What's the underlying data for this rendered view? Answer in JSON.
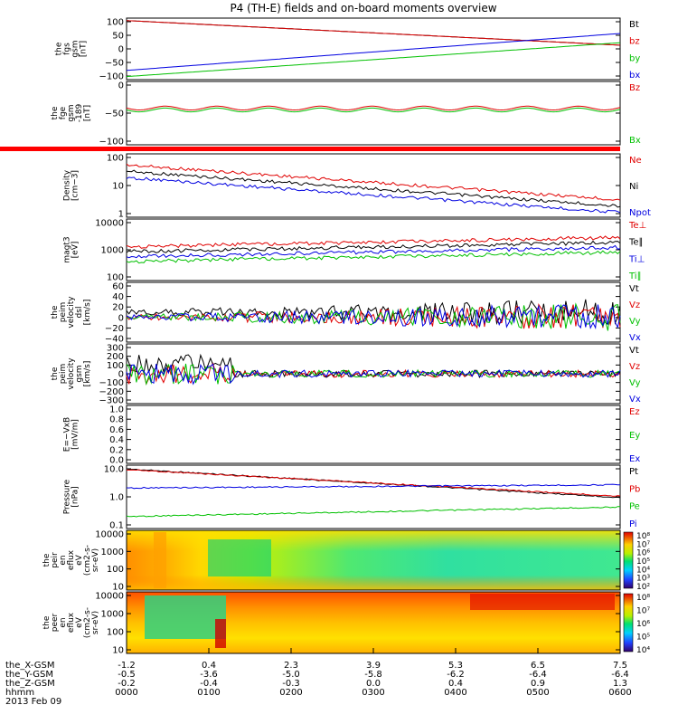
{
  "title": "P4 (TH-E) fields and on-board moments overview",
  "chart_data": {
    "type": "line",
    "x_ticks": {
      "rows": [
        {
          "label": "the_X-GSM",
          "values": [
            "-1.2",
            "0.4",
            "2.3",
            "3.9",
            "5.3",
            "6.5",
            "7.5"
          ]
        },
        {
          "label": "the_Y-GSM",
          "values": [
            "-0.5",
            "-3.6",
            "-5.0",
            "-5.8",
            "-6.2",
            "-6.4",
            "-6.4"
          ]
        },
        {
          "label": "the_Z-GSM",
          "values": [
            "-0.2",
            "-0.4",
            "-0.3",
            "0.0",
            "0.4",
            "0.9",
            "1.3"
          ]
        },
        {
          "label": "hhmm",
          "values": [
            "0000",
            "0100",
            "0200",
            "0300",
            "0400",
            "0500",
            "0600"
          ]
        }
      ],
      "date": "2013 Feb 09"
    },
    "panels": [
      {
        "ylabel": [
          "the",
          "fgs",
          "gsm",
          "[nT]"
        ],
        "scale": "linear",
        "yticks": [
          "100",
          "50",
          "0",
          "−50",
          "−100"
        ],
        "series": [
          {
            "name": "Bt",
            "color": "#000000"
          },
          {
            "name": "bz",
            "color": "#e00000"
          },
          {
            "name": "by",
            "color": "#00c000"
          },
          {
            "name": "bx",
            "color": "#0000e0"
          }
        ]
      },
      {
        "ylabel": [
          "the",
          "fge",
          "gsm",
          "-189",
          "[nT]"
        ],
        "scale": "linear",
        "yticks": [
          "0",
          "−50",
          "−100"
        ],
        "series": [
          {
            "name": "Bz",
            "color": "#e00000"
          },
          {
            "name": "Bx",
            "color": "#00c000"
          }
        ]
      },
      {
        "ylabel": [
          "Density",
          "[cm−3]"
        ],
        "scale": "log",
        "yticks": [
          "100",
          "10",
          "1"
        ],
        "series": [
          {
            "name": "Ne",
            "color": "#e00000"
          },
          {
            "name": "Ni",
            "color": "#000000"
          },
          {
            "name": "Npot",
            "color": "#0000e0"
          }
        ]
      },
      {
        "ylabel": [
          "magt3",
          "[eV]"
        ],
        "scale": "log",
        "yticks": [
          "10000",
          "1000",
          "100"
        ],
        "series": [
          {
            "name": "Te⊥",
            "color": "#e00000"
          },
          {
            "name": "Te∥",
            "color": "#000000"
          },
          {
            "name": "Ti⊥",
            "color": "#0000e0"
          },
          {
            "name": "Ti∥",
            "color": "#00c000"
          }
        ]
      },
      {
        "ylabel": [
          "the",
          "peim",
          "velocity",
          "dsl",
          "[km/s]"
        ],
        "scale": "linear",
        "yticks": [
          "60",
          "40",
          "20",
          "0",
          "−20",
          "−40"
        ],
        "series": [
          {
            "name": "Vt",
            "color": "#000000"
          },
          {
            "name": "Vz",
            "color": "#e00000"
          },
          {
            "name": "Vy",
            "color": "#00c000"
          },
          {
            "name": "Vx",
            "color": "#0000e0"
          }
        ]
      },
      {
        "ylabel": [
          "the",
          "peim",
          "velocity",
          "gsm",
          "[km/s]"
        ],
        "scale": "linear",
        "yticks": [
          "300",
          "200",
          "100",
          "0",
          "−100",
          "−200",
          "−300"
        ],
        "series": [
          {
            "name": "Vt",
            "color": "#000000"
          },
          {
            "name": "Vz",
            "color": "#e00000"
          },
          {
            "name": "Vy",
            "color": "#00c000"
          },
          {
            "name": "Vx",
            "color": "#0000e0"
          }
        ]
      },
      {
        "ylabel": [
          "E=−VxB",
          "[mV/m]"
        ],
        "scale": "linear",
        "yticks": [
          "1.0",
          "0.8",
          "0.6",
          "0.4",
          "0.2",
          "0.0"
        ],
        "series": [
          {
            "name": "Ez",
            "color": "#e00000"
          },
          {
            "name": "Ey",
            "color": "#00c000"
          },
          {
            "name": "Ex",
            "color": "#0000e0"
          }
        ]
      },
      {
        "ylabel": [
          "Pressure",
          "[nPa]"
        ],
        "scale": "log",
        "yticks": [
          "10.0",
          "1.0",
          "0.1"
        ],
        "series": [
          {
            "name": "Pt",
            "color": "#000000"
          },
          {
            "name": "Pb",
            "color": "#e00000"
          },
          {
            "name": "Pe",
            "color": "#00c000"
          },
          {
            "name": "Pi",
            "color": "#0000e0"
          }
        ]
      },
      {
        "ylabel": [
          "the",
          "peir",
          "en",
          "eflux",
          "eV",
          "(cm2-s-",
          "sr-eV)"
        ],
        "scale": "log",
        "yticks": [
          "10000",
          "1000",
          "100",
          "10"
        ],
        "colorbar": [
          "10⁸",
          "10⁷",
          "10⁶",
          "10⁵",
          "10⁴",
          "10³",
          "10²"
        ]
      },
      {
        "ylabel": [
          "the",
          "peer",
          "en",
          "eflux",
          "eV",
          "(cm2-s-",
          "sr-eV)"
        ],
        "scale": "log",
        "yticks": [
          "10000",
          "1000",
          "100",
          "10"
        ],
        "colorbar": [
          "10⁸",
          "10⁷",
          "10⁶",
          "10⁵",
          "10⁴"
        ]
      }
    ]
  }
}
